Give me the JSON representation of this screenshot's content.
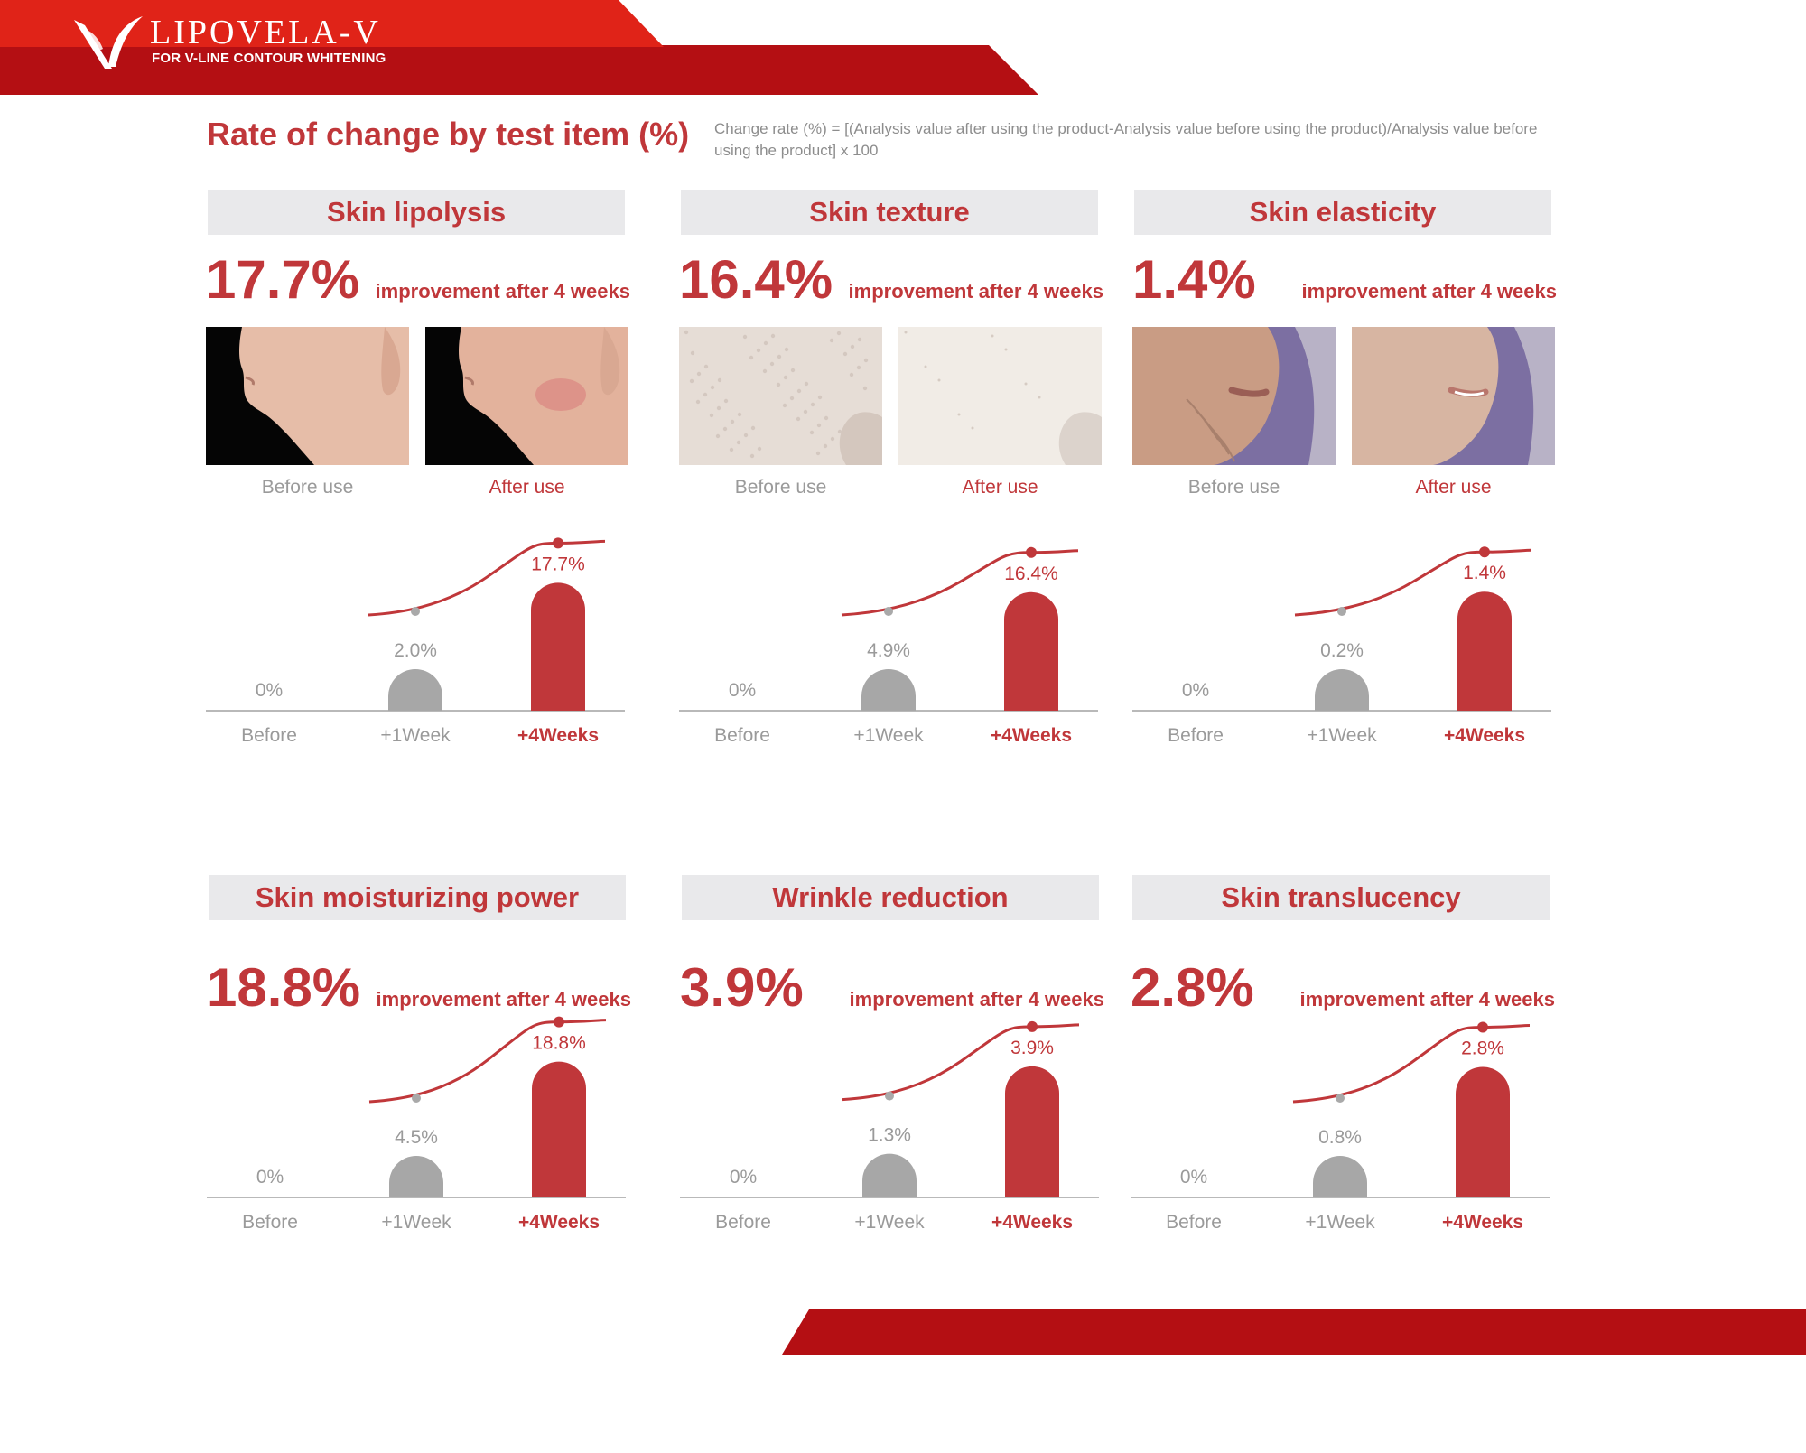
{
  "brand": {
    "name": "LIPOVELA-V",
    "tagline": "FOR V-LINE CONTOUR WHITENING",
    "colors": {
      "primary": "#c0373a",
      "header_red": "#b40f13",
      "header_bright": "#e02318",
      "gray_bar": "#a7a7a7"
    }
  },
  "page": {
    "title": "Rate of change by test item (%)",
    "formula": "Change rate (%) = [(Analysis value after using the product-Analysis value before using the product)/Analysis value before using the product] x 100"
  },
  "captions": {
    "before": "Before use",
    "after": "After use"
  },
  "chart_data": [
    {
      "type": "bar",
      "title": "Skin lipolysis",
      "headline_value": "17.7%",
      "headline_text": "improvement after 4 weeks",
      "has_photos": true,
      "photo_kind": "jaw",
      "categories": [
        "Before",
        "+1Week",
        "+4Weeks"
      ],
      "values": [
        0,
        2.0,
        17.7
      ],
      "labels": [
        "0%",
        "2.0%",
        "17.7%"
      ],
      "trend_line": true,
      "ylim": [
        0,
        20
      ]
    },
    {
      "type": "bar",
      "title": "Skin texture",
      "headline_value": "16.4%",
      "headline_text": "improvement after 4 weeks",
      "has_photos": true,
      "photo_kind": "skin",
      "categories": [
        "Before",
        "+1Week",
        "+4Weeks"
      ],
      "values": [
        0,
        4.9,
        16.4
      ],
      "labels": [
        "0%",
        "4.9%",
        "16.4%"
      ],
      "trend_line": true,
      "ylim": [
        0,
        20
      ]
    },
    {
      "type": "bar",
      "title": "Skin elasticity",
      "headline_value": "1.4%",
      "headline_text": "improvement after 4 weeks",
      "has_photos": true,
      "photo_kind": "face",
      "categories": [
        "Before",
        "+1Week",
        "+4Weeks"
      ],
      "values": [
        0,
        0.2,
        1.4
      ],
      "labels": [
        "0%",
        "0.2%",
        "1.4%"
      ],
      "trend_line": true,
      "ylim": [
        0,
        1.7
      ]
    },
    {
      "type": "bar",
      "title": "Skin moisturizing power",
      "headline_value": "18.8%",
      "headline_text": "improvement after 4 weeks",
      "has_photos": false,
      "categories": [
        "Before",
        "+1Week",
        "+4Weeks"
      ],
      "values": [
        0,
        4.5,
        18.8
      ],
      "labels": [
        "0%",
        "4.5%",
        "18.8%"
      ],
      "trend_line": true,
      "ylim": [
        0,
        20
      ]
    },
    {
      "type": "bar",
      "title": "Wrinkle reduction",
      "headline_value": "3.9%",
      "headline_text": "improvement after 4 weeks",
      "has_photos": false,
      "categories": [
        "Before",
        "+1Week",
        "+4Weeks"
      ],
      "values": [
        0,
        1.3,
        3.9
      ],
      "labels": [
        "0%",
        "1.3%",
        "3.9%"
      ],
      "trend_line": true,
      "ylim": [
        0,
        4.3
      ]
    },
    {
      "type": "bar",
      "title": "Skin translucency",
      "headline_value": "2.8%",
      "headline_text": "improvement after 4 weeks",
      "has_photos": false,
      "categories": [
        "Before",
        "+1Week",
        "+4Weeks"
      ],
      "values": [
        0,
        0.8,
        2.8
      ],
      "labels": [
        "0%",
        "0.8%",
        "2.8%"
      ],
      "trend_line": true,
      "ylim": [
        0,
        3.1
      ]
    }
  ]
}
